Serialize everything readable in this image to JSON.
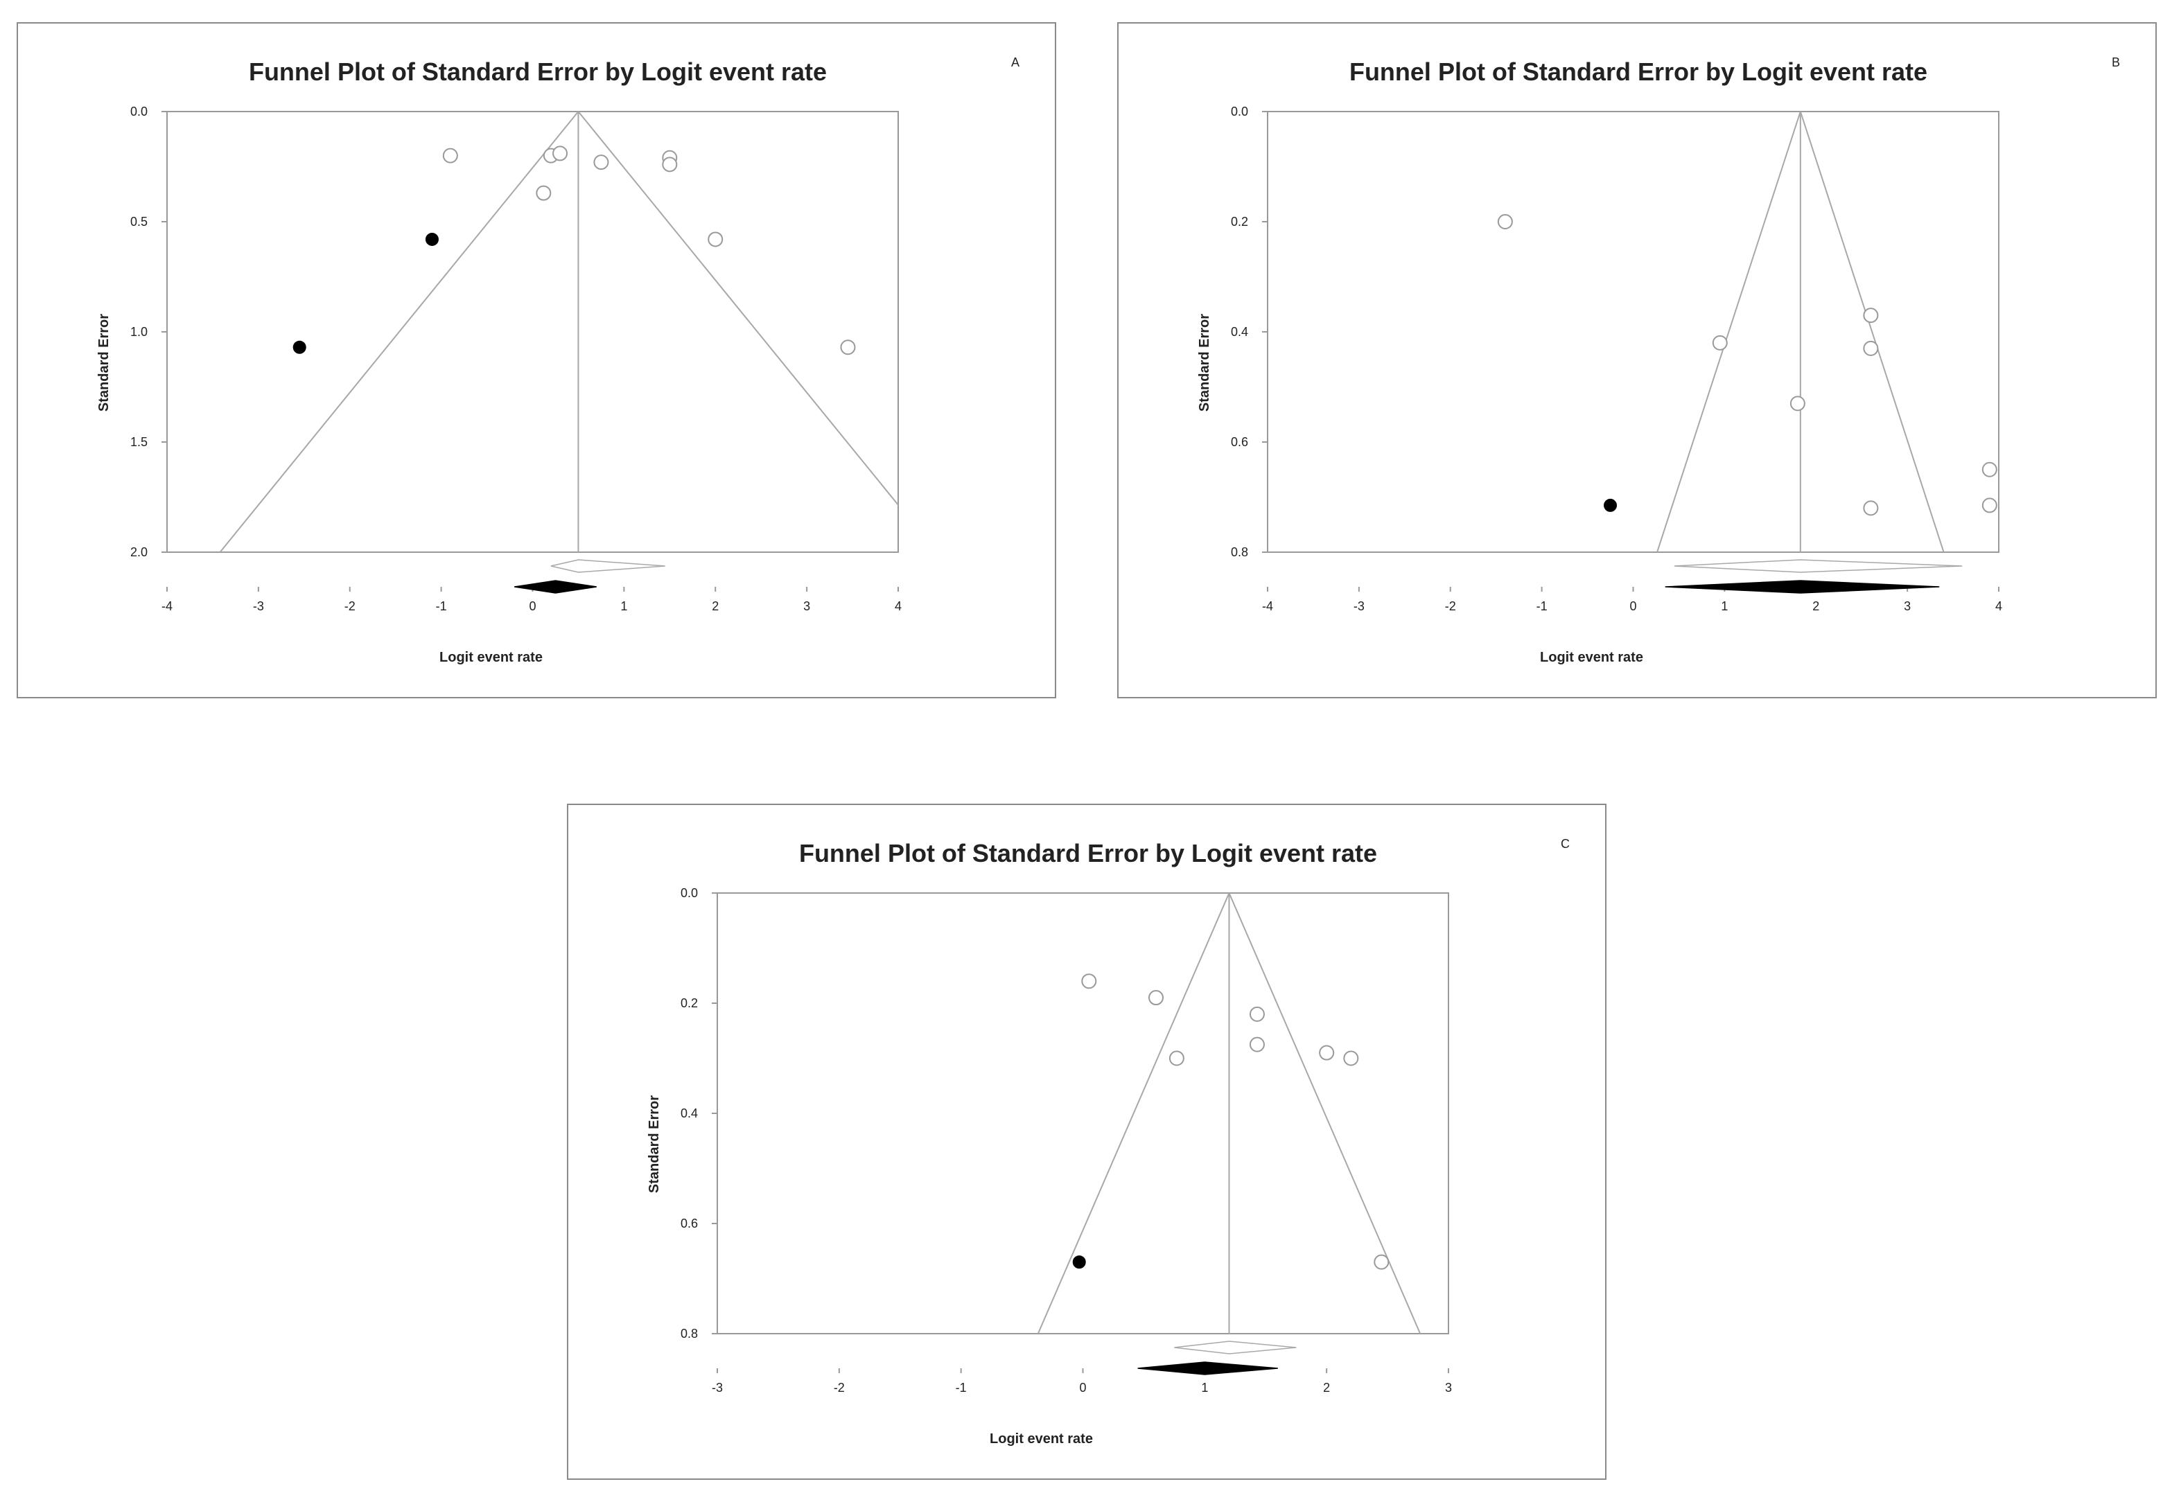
{
  "colors": {
    "frame": "#8a8a8a",
    "axes": "#999999",
    "funnel": "#a8a8a8",
    "text": "#222222",
    "observed_marker": "#999999",
    "imputed_marker": "#000000"
  },
  "chart_data": [
    {
      "type": "scatter",
      "panel_letter": "A",
      "title": "Funnel Plot of Standard Error by Logit event rate",
      "xlabel": "Logit event rate",
      "ylabel": "Standard Error",
      "xlim": [
        -4,
        4
      ],
      "ylim": [
        0,
        2
      ],
      "y_inverted": true,
      "x_ticks": [
        "-4",
        "-3",
        "-2",
        "-1",
        "0",
        "1",
        "2",
        "3",
        "4"
      ],
      "y_ticks": [
        "0.0",
        "0.5",
        "1.0",
        "1.5",
        "2.0"
      ],
      "grid": false,
      "funnel_center": 0.5,
      "observed_points": [
        {
          "x": -0.9,
          "y": 0.2
        },
        {
          "x": 0.2,
          "y": 0.2
        },
        {
          "x": 0.3,
          "y": 0.19
        },
        {
          "x": 0.12,
          "y": 0.37
        },
        {
          "x": 0.75,
          "y": 0.23
        },
        {
          "x": 1.5,
          "y": 0.21
        },
        {
          "x": 1.5,
          "y": 0.24
        },
        {
          "x": 2.0,
          "y": 0.58
        },
        {
          "x": 3.45,
          "y": 1.07
        }
      ],
      "imputed_points": [
        {
          "x": -2.55,
          "y": 1.07
        },
        {
          "x": -1.1,
          "y": 0.58
        }
      ],
      "observed_summary": {
        "estimate": 0.5,
        "lower": 0.2,
        "upper": 1.45
      },
      "adjusted_summary": {
        "estimate": 0.25,
        "lower": -0.2,
        "upper": 0.7
      }
    },
    {
      "type": "scatter",
      "panel_letter": "B",
      "title": "Funnel Plot of Standard Error by Logit event rate",
      "xlabel": "Logit event rate",
      "ylabel": "Standard Error",
      "xlim": [
        -4,
        4
      ],
      "ylim": [
        0,
        0.8
      ],
      "y_inverted": true,
      "x_ticks": [
        "-4",
        "-3",
        "-2",
        "-1",
        "0",
        "1",
        "2",
        "3",
        "4"
      ],
      "y_ticks": [
        "0.0",
        "0.2",
        "0.4",
        "0.6",
        "0.8"
      ],
      "grid": false,
      "funnel_center": 1.83,
      "observed_points": [
        {
          "x": -1.4,
          "y": 0.2
        },
        {
          "x": 0.95,
          "y": 0.42
        },
        {
          "x": 1.8,
          "y": 0.53
        },
        {
          "x": 2.6,
          "y": 0.37
        },
        {
          "x": 2.6,
          "y": 0.43
        },
        {
          "x": 2.6,
          "y": 0.72
        },
        {
          "x": 3.9,
          "y": 0.65
        },
        {
          "x": 3.9,
          "y": 0.715
        }
      ],
      "imputed_points": [
        {
          "x": -0.25,
          "y": 0.715
        }
      ],
      "observed_summary": {
        "estimate": 1.83,
        "lower": 0.45,
        "upper": 3.6
      },
      "adjusted_summary": {
        "estimate": 1.83,
        "lower": 0.35,
        "upper": 3.35
      }
    },
    {
      "type": "scatter",
      "panel_letter": "C",
      "title": "Funnel Plot of Standard Error by Logit event rate",
      "xlabel": "Logit event rate",
      "ylabel": "Standard Error",
      "xlim": [
        -3,
        3
      ],
      "ylim": [
        0,
        0.8
      ],
      "y_inverted": true,
      "x_ticks": [
        "-3",
        "-2",
        "-1",
        "0",
        "1",
        "2",
        "3"
      ],
      "y_ticks": [
        "0.0",
        "0.2",
        "0.4",
        "0.6",
        "0.8"
      ],
      "grid": false,
      "funnel_center": 1.2,
      "observed_points": [
        {
          "x": 0.05,
          "y": 0.16
        },
        {
          "x": 0.6,
          "y": 0.19
        },
        {
          "x": 0.77,
          "y": 0.3
        },
        {
          "x": 1.43,
          "y": 0.22
        },
        {
          "x": 1.43,
          "y": 0.275
        },
        {
          "x": 2.0,
          "y": 0.29
        },
        {
          "x": 2.2,
          "y": 0.3
        },
        {
          "x": 2.45,
          "y": 0.67
        }
      ],
      "imputed_points": [
        {
          "x": -0.03,
          "y": 0.67
        }
      ],
      "observed_summary": {
        "estimate": 1.2,
        "lower": 0.75,
        "upper": 1.75
      },
      "adjusted_summary": {
        "estimate": 1.0,
        "lower": 0.45,
        "upper": 1.6
      }
    }
  ]
}
